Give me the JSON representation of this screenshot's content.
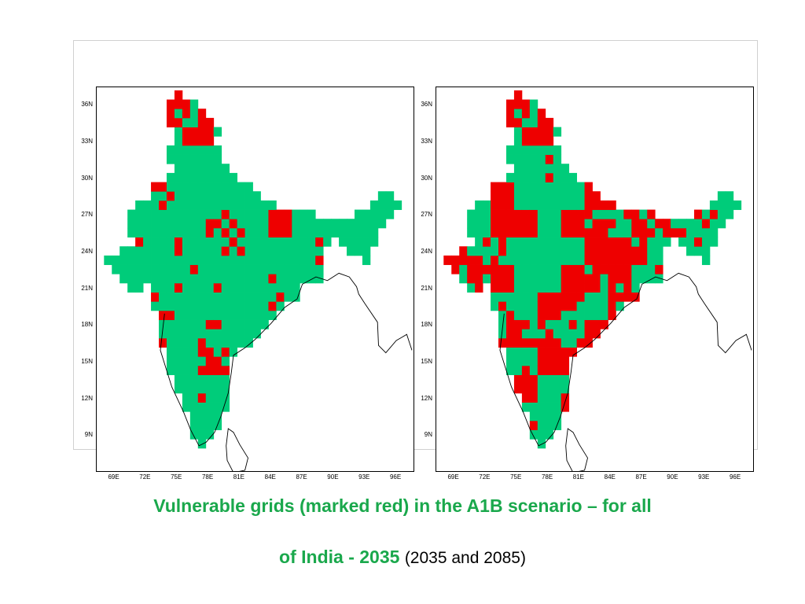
{
  "maps": [
    {
      "name": "2035",
      "y_ticks": [
        "36N",
        "33N",
        "30N",
        "27N",
        "24N",
        "21N",
        "18N",
        "15N",
        "12N",
        "9N"
      ],
      "x_ticks": [
        "69E",
        "72E",
        "75E",
        "78E",
        "81E",
        "84E",
        "87E",
        "90E",
        "93E",
        "96E"
      ]
    },
    {
      "name": "2085",
      "y_ticks": [
        "36N",
        "33N",
        "30N",
        "27N",
        "24N",
        "21N",
        "18N",
        "15N",
        "12N",
        "9N"
      ],
      "x_ticks": [
        "69E",
        "72E",
        "75E",
        "78E",
        "81E",
        "84E",
        "87E",
        "90E",
        "93E",
        "96E"
      ]
    }
  ],
  "colors": {
    "vulnerable": "#ee0000",
    "safe": "#00cc7a",
    "outline": "#000000"
  },
  "caption": {
    "line1": "Vulnerable grids (marked red) in the A1B scenario – for all",
    "line2_bold": "of India - 2035",
    "line2_normal": "(2035 and 2085)"
  }
}
